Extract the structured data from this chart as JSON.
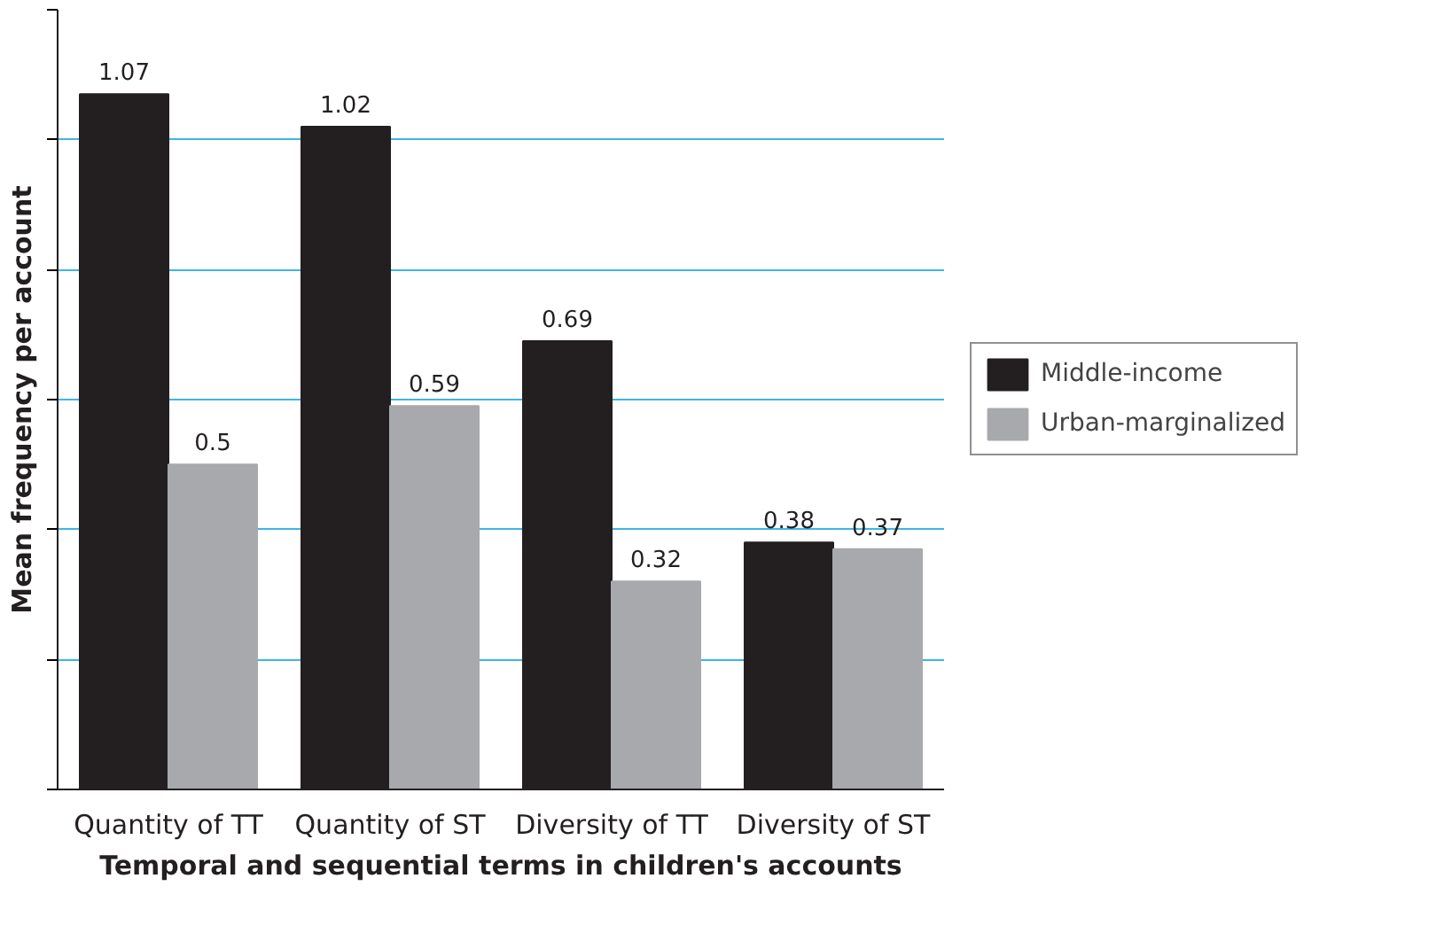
{
  "chart_data": {
    "type": "bar",
    "xlabel": "Temporal and sequential terms in children's accounts",
    "ylabel": "Mean frequency per account",
    "categories": [
      "Quantity of TT",
      "Quantity of ST",
      "Diversity of TT",
      "Diversity of ST"
    ],
    "series": [
      {
        "name": "Middle-income",
        "color": "#231f20",
        "values": [
          1.07,
          1.02,
          0.69,
          0.38
        ]
      },
      {
        "name": "Urban-marginalized",
        "color": "#a7a9ac",
        "values": [
          0.5,
          0.59,
          0.32,
          0.37
        ]
      }
    ],
    "ylim": [
      0,
      1.2
    ],
    "yticks": [
      {
        "value": 0,
        "label": null
      },
      {
        "value": 0.2,
        "label": null
      },
      {
        "value": 0.4,
        "label": null
      },
      {
        "value": 0.6,
        "label": null
      },
      {
        "value": 0.8,
        "label": null
      },
      {
        "value": 1.0,
        "label": null
      },
      {
        "value": 1.2,
        "label": null
      }
    ],
    "grid": "y",
    "legend": "right",
    "tick_labels": "x",
    "data_labels": true
  }
}
